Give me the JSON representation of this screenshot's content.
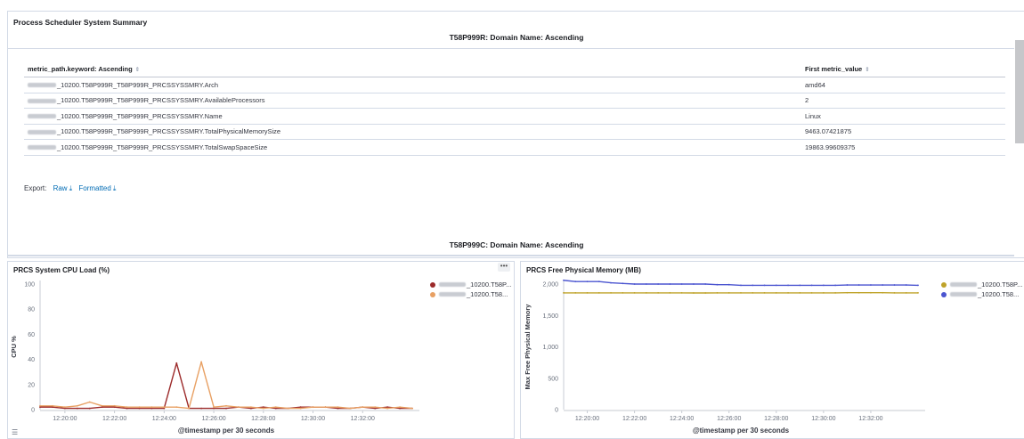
{
  "summary": {
    "title": "Process Scheduler System Summary",
    "split1_title": "T58P999R: Domain Name: Ascending",
    "split2_title": "T58P999C: Domain Name: Ascending",
    "columns": [
      "metric_path.keyword: Ascending",
      "First metric_value"
    ],
    "rows": [
      {
        "path": "_10200.T58P999R_T58P999R_PRCSSYSSMRY.Arch",
        "value": "amd64"
      },
      {
        "path": "_10200.T58P999R_T58P999R_PRCSSYSSMRY.AvailableProcessors",
        "value": "2"
      },
      {
        "path": "_10200.T58P999R_T58P999R_PRCSSYSSMRY.Name",
        "value": "Linux"
      },
      {
        "path": "_10200.T58P999R_T58P999R_PRCSSYSSMRY.TotalPhysicalMemorySize",
        "value": "9463.07421875"
      },
      {
        "path": "_10200.T58P999R_T58P999R_PRCSSYSSMRY.TotalSwapSpaceSize",
        "value": "19863.99609375"
      }
    ],
    "export_label": "Export:",
    "raw_label": "Raw",
    "formatted_label": "Formatted"
  },
  "chart_data": [
    {
      "type": "line",
      "title": "PRCS System CPU Load (%)",
      "xlabel": "@timestamp per 30 seconds",
      "ylabel": "CPU %",
      "ylim": [
        0,
        100
      ],
      "yticks": [
        0,
        20,
        40,
        60,
        80,
        100
      ],
      "xticks": [
        "12:20:00",
        "12:22:00",
        "12:24:00",
        "12:26:00",
        "12:28:00",
        "12:30:00",
        "12:32:00"
      ],
      "x": [
        "12:19:00",
        "12:19:30",
        "12:20:00",
        "12:20:30",
        "12:21:00",
        "12:21:30",
        "12:22:00",
        "12:22:30",
        "12:23:00",
        "12:23:30",
        "12:24:00",
        "12:24:30",
        "12:25:00",
        "12:25:30",
        "12:26:00",
        "12:26:30",
        "12:27:00",
        "12:27:30",
        "12:28:00",
        "12:28:30",
        "12:29:00",
        "12:29:30",
        "12:30:00",
        "12:30:30",
        "12:31:00",
        "12:31:30",
        "12:32:00",
        "12:32:30",
        "12:33:00",
        "12:33:30",
        "12:34:00"
      ],
      "series": [
        {
          "name": "_10200.T58P...",
          "color": "#9c2a2a",
          "values": [
            2,
            2,
            1,
            1,
            1,
            2,
            2,
            1,
            1,
            1,
            1,
            37,
            1,
            1,
            1,
            1,
            2,
            1,
            2,
            1,
            1,
            2,
            2,
            2,
            1,
            1,
            2,
            1,
            2,
            1,
            1
          ]
        },
        {
          "name": "_10200.T58...",
          "color": "#e8a063",
          "values": [
            3,
            3,
            2,
            3,
            6,
            3,
            3,
            2,
            2,
            2,
            2,
            2,
            1,
            38,
            2,
            3,
            2,
            2,
            1,
            2,
            1,
            1,
            2,
            2,
            2,
            1,
            2,
            2,
            1,
            2,
            1
          ]
        }
      ]
    },
    {
      "type": "line",
      "title": "PRCS Free Physical Memory (MB)",
      "xlabel": "@timestamp per 30 seconds",
      "ylabel": "Max Free Physical Memory",
      "ylim": [
        0,
        2000
      ],
      "yticks": [
        0,
        500,
        1000,
        1500,
        2000
      ],
      "ytick_labels": [
        "0",
        "500",
        "1,000",
        "1,500",
        "2,000"
      ],
      "xticks": [
        "12:20:00",
        "12:22:00",
        "12:24:00",
        "12:26:00",
        "12:28:00",
        "12:30:00",
        "12:32:00"
      ],
      "x": [
        "12:19:00",
        "12:19:30",
        "12:20:00",
        "12:20:30",
        "12:21:00",
        "12:21:30",
        "12:22:00",
        "12:22:30",
        "12:23:00",
        "12:23:30",
        "12:24:00",
        "12:24:30",
        "12:25:00",
        "12:25:30",
        "12:26:00",
        "12:26:30",
        "12:27:00",
        "12:27:30",
        "12:28:00",
        "12:28:30",
        "12:29:00",
        "12:29:30",
        "12:30:00",
        "12:30:30",
        "12:31:00",
        "12:31:30",
        "12:32:00",
        "12:32:30",
        "12:33:00",
        "12:33:30",
        "12:34:00"
      ],
      "series": [
        {
          "name": "_10200.T58P...",
          "color": "#bfa32a",
          "values": [
            1860,
            1860,
            1860,
            1860,
            1860,
            1860,
            1860,
            1860,
            1860,
            1860,
            1860,
            1858,
            1858,
            1860,
            1860,
            1860,
            1860,
            1860,
            1860,
            1860,
            1860,
            1860,
            1860,
            1860,
            1862,
            1862,
            1862,
            1862,
            1860,
            1860,
            1860
          ]
        },
        {
          "name": "_10200.T58...",
          "color": "#4b55d0",
          "values": [
            2060,
            2040,
            2040,
            2040,
            2020,
            2010,
            2000,
            2000,
            2000,
            2000,
            2000,
            2000,
            2000,
            1990,
            1990,
            1980,
            1980,
            1980,
            1980,
            1980,
            1980,
            1980,
            1980,
            1980,
            1985,
            1985,
            1985,
            1985,
            1985,
            1985,
            1980
          ]
        }
      ]
    }
  ]
}
